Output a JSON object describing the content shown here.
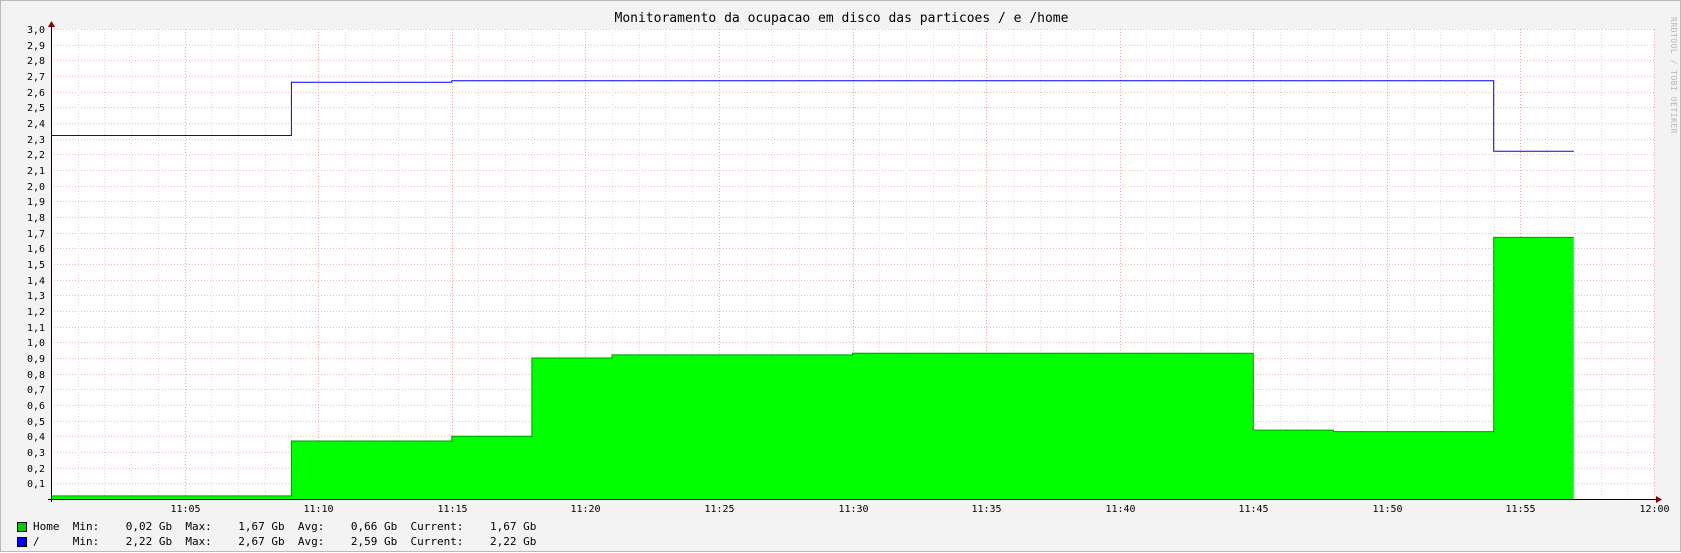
{
  "window": {
    "title": "Monitoramento da ocupacao em disco das particoes / e /home",
    "watermark": "RRDTOOL / TOBI OETIKER"
  },
  "chart_data": {
    "type": "area",
    "title": "Monitoramento da ocupacao em disco das particoes / e /home",
    "xlabel": "",
    "ylabel": "",
    "x_range_minutes": [
      "11:00",
      "12:00"
    ],
    "x_ticks": [
      "11:05",
      "11:10",
      "11:15",
      "11:20",
      "11:25",
      "11:30",
      "11:35",
      "11:40",
      "11:45",
      "11:50",
      "11:55",
      "12:00"
    ],
    "ylim": [
      0,
      3.0
    ],
    "y_ticks": [
      "0,1",
      "0,2",
      "0,3",
      "0,4",
      "0,5",
      "0,6",
      "0,7",
      "0,8",
      "0,9",
      "1,0",
      "1,1",
      "1,2",
      "1,3",
      "1,4",
      "1,5",
      "1,6",
      "1,7",
      "1,8",
      "1,9",
      "2,0",
      "2,1",
      "2,2",
      "2,3",
      "2,4",
      "2,5",
      "2,6",
      "2,7",
      "2,8",
      "2,9",
      "3,0"
    ],
    "grid": true,
    "legend_position": "bottom-left",
    "series": [
      {
        "name": "Home",
        "style": "area",
        "color": "#00ff00",
        "unit": "Gb",
        "steps": [
          {
            "start": "11:00",
            "end": "11:09",
            "value": 0.02
          },
          {
            "start": "11:09",
            "end": "11:15",
            "value": 0.37
          },
          {
            "start": "11:15",
            "end": "11:18",
            "value": 0.4
          },
          {
            "start": "11:18",
            "end": "11:21",
            "value": 0.9
          },
          {
            "start": "11:21",
            "end": "11:30",
            "value": 0.92
          },
          {
            "start": "11:30",
            "end": "11:45",
            "value": 0.93
          },
          {
            "start": "11:45",
            "end": "11:48",
            "value": 0.44
          },
          {
            "start": "11:48",
            "end": "11:54",
            "value": 0.43
          },
          {
            "start": "11:54",
            "end": "11:57",
            "value": 1.67
          }
        ]
      },
      {
        "name": "/",
        "style": "line",
        "color": "#0000ff",
        "unit": "Gb",
        "steps": [
          {
            "start": "11:00",
            "end": "11:09",
            "value": 2.32
          },
          {
            "start": "11:09",
            "end": "11:15",
            "value": 2.66
          },
          {
            "start": "11:15",
            "end": "11:54",
            "value": 2.67
          },
          {
            "start": "11:54",
            "end": "11:57",
            "value": 2.22
          }
        ]
      }
    ]
  },
  "legend": [
    {
      "color": "#00cc00",
      "text": "Home  Min:    0,02 Gb  Max:    1,67 Gb  Avg:    0,66 Gb  Current:    1,67 Gb"
    },
    {
      "color": "#0000ff",
      "text": "/     Min:    2,22 Gb  Max:    2,67 Gb  Avg:    2,59 Gb  Current:    2,22 Gb"
    }
  ]
}
